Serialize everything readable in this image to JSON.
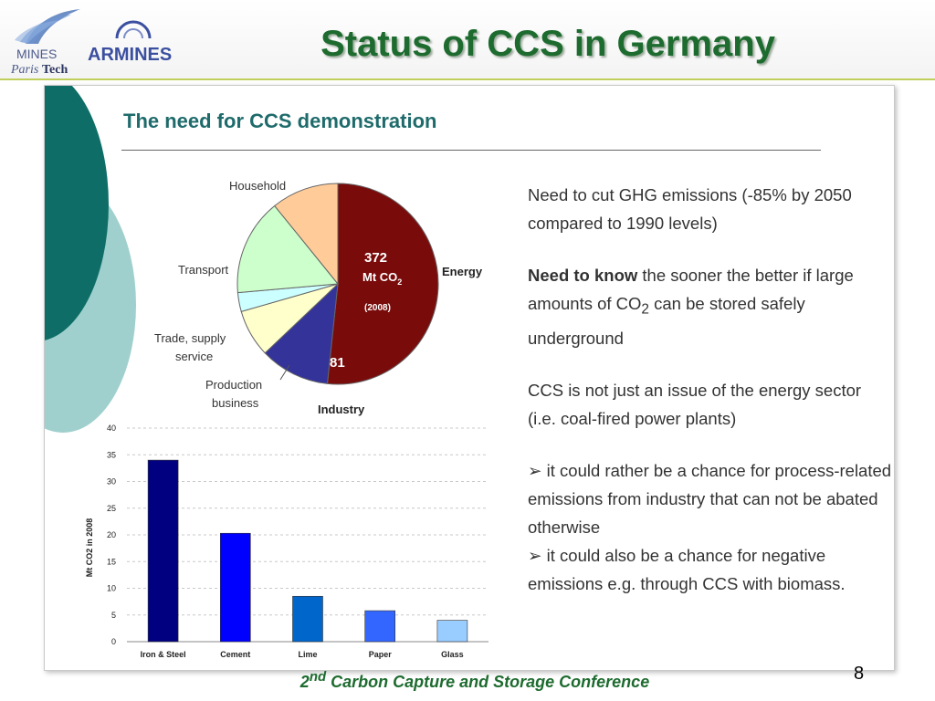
{
  "header": {
    "title": "Status of CCS in Germany",
    "logo_mines_top": "MINES",
    "logo_mines_bottom_1": "Paris",
    "logo_mines_bottom_2": "Tech",
    "logo_armines": "ARMINES"
  },
  "panel": {
    "title": "The need for CCS demonstration",
    "paragraph1": "Need to cut GHG emissions (-85% by 2050 compared to 1990 levels)",
    "paragraph2_bold": "Need to know",
    "paragraph2_rest_1": " the sooner the better if large amounts of CO",
    "paragraph2_sub": "2",
    "paragraph2_rest_2": " can be stored safely underground",
    "paragraph3": "CCS is not just an issue of the energy sector (i.e. coal-fired power plants)",
    "bullet_marker": "➢",
    "bullet1": "it could rather be a chance for process-related emissions from industry that can not be abated otherwise",
    "bullet2": "it could also be a chance for negative emissions e.g. through CCS with biomass."
  },
  "footer": {
    "ordinal_num": "2",
    "ordinal_suffix": "nd",
    "text": " Carbon Capture and Storage Conference",
    "page_number": "8"
  },
  "chart_data": [
    {
      "type": "pie",
      "slices": [
        {
          "name": "Energy",
          "value": 372,
          "color": "#7a0b0b"
        },
        {
          "name": "Industry",
          "value": 81,
          "color": "#333399"
        },
        {
          "name": "Production business",
          "value": 55,
          "color": "#ffffcc"
        },
        {
          "name": "Trade, supply service",
          "value": 22,
          "color": "#ccffff"
        },
        {
          "name": "Transport",
          "value": 112,
          "color": "#ccffcc"
        },
        {
          "name": "Household",
          "value": 78,
          "color": "#ffcc99"
        }
      ],
      "inner_labels": {
        "energy_value": "372",
        "energy_unit": "Mt CO",
        "energy_unit_sub": "2",
        "energy_year": "(2008)",
        "industry_value": "81"
      },
      "outer_labels": {
        "household": "Household",
        "transport": "Transport",
        "trade_1": "Trade, supply",
        "trade_2": "service",
        "production_1": "Production",
        "production_2": "business",
        "energy": "Energy",
        "industry": "Industry"
      }
    },
    {
      "type": "bar",
      "categories": [
        "Iron & Steel",
        "Cement",
        "Lime",
        "Paper",
        "Glass"
      ],
      "values": [
        34,
        20.3,
        8.5,
        5.8,
        4
      ],
      "colors": [
        "#000080",
        "#0000ff",
        "#0066cc",
        "#3366ff",
        "#99ccff"
      ],
      "ylabel": "Mt CO2 in 2008",
      "ylim": [
        0,
        40
      ],
      "yticks": [
        0,
        5,
        10,
        15,
        20,
        25,
        30,
        35,
        40
      ],
      "grid": true
    }
  ]
}
